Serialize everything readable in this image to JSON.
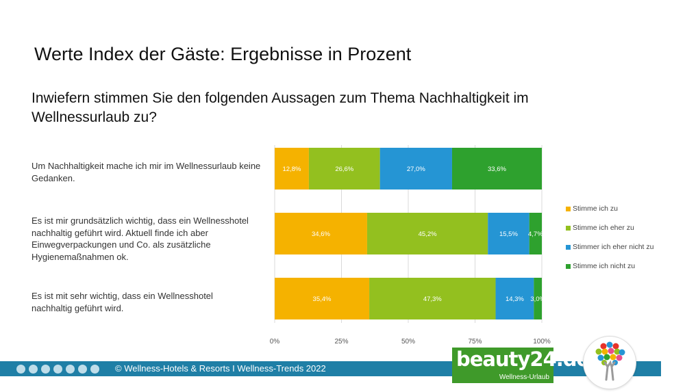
{
  "title": "Werte Index der Gäste: Ergebnisse in Prozent",
  "question": "Inwiefern stimmen Sie den folgenden Aussagen zum Thema Nachhaltigkeit im Wellnessurlaub zu?",
  "footer": {
    "text": "© Wellness-Hotels & Resorts I Wellness-Trends 2022",
    "brand_name": "beauty24.de",
    "brand_sub": "Wellness-Urlaub"
  },
  "colors": {
    "footer_bar": "#1f7fa6",
    "brand_green": "#3f9a2a"
  },
  "chart_data": {
    "type": "bar",
    "orientation": "horizontal",
    "stacked": true,
    "categories": [
      "Um Nachhaltigkeit mache ich mir im Wellnessurlaub keine Gedanken.",
      "Es ist mir grundsätzlich wichtig, dass ein Wellnesshotel nachhaltig geführt wird.  Aktuell finde ich aber Einwegverpackungen und Co. als zusätzliche Hygienemaßnahmen ok.",
      "Es ist mit sehr wichtig,  dass ein Wellnesshotel nachhaltig geführt wird."
    ],
    "series": [
      {
        "name": "Stimme ich zu",
        "color": "#f5b200",
        "values": [
          12.8,
          34.6,
          35.4
        ],
        "labels": [
          "12,8%",
          "34,6%",
          "35,4%"
        ]
      },
      {
        "name": "Stimme ich eher zu",
        "color": "#93c01f",
        "values": [
          26.6,
          45.2,
          47.3
        ],
        "labels": [
          "26,6%",
          "45,2%",
          "47,3%"
        ]
      },
      {
        "name": "Stimmer ich eher nicht zu",
        "color": "#2595d4",
        "values": [
          27.0,
          15.5,
          14.3
        ],
        "labels": [
          "27,0%",
          "15,5%",
          "14,3%"
        ]
      },
      {
        "name": "Stimme ich nicht zu",
        "color": "#2ea12e",
        "values": [
          33.6,
          4.7,
          3.0
        ],
        "labels": [
          "33,6%",
          "4,7%",
          "3,0%"
        ]
      }
    ],
    "x_ticks": [
      "0%",
      "25%",
      "50%",
      "75%",
      "100%"
    ],
    "xlim": [
      0,
      100
    ],
    "grid": true,
    "legend": "right"
  }
}
